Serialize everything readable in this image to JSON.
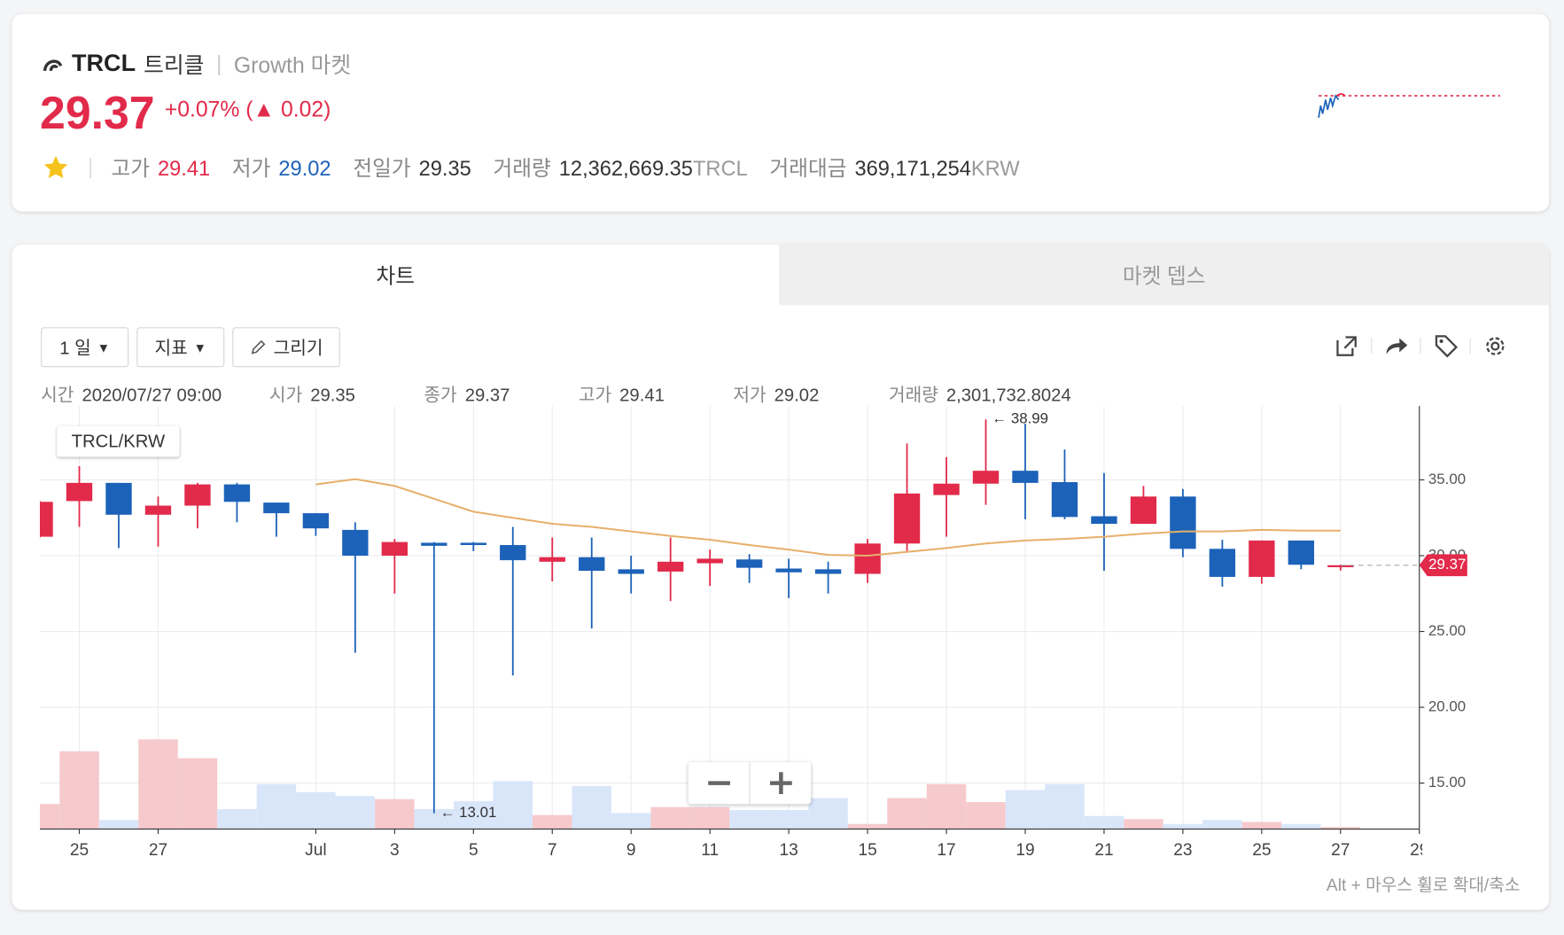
{
  "header": {
    "symbol": "TRCL",
    "name": "트리클",
    "market": "Growth 마켓",
    "price": "29.37",
    "change_pct": "+0.07%",
    "change": "(▲ 0.02)",
    "stats": [
      {
        "label": "고가",
        "value": "29.41",
        "tone": "red"
      },
      {
        "label": "저가",
        "value": "29.02",
        "tone": "blue"
      },
      {
        "label": "전일가",
        "value": "29.35",
        "tone": "dark"
      },
      {
        "label": "거래량",
        "value": "12,362,669.35",
        "unit": "TRCL",
        "tone": "dark"
      },
      {
        "label": "거래대금",
        "value": "369,171,254",
        "unit": "KRW",
        "tone": "dark"
      }
    ]
  },
  "tabs": [
    "차트",
    "마켓 뎁스"
  ],
  "toolbar": {
    "interval": "1 일",
    "indicator": "지표",
    "draw": "그리기"
  },
  "info_bar": [
    {
      "label": "시간",
      "value": "2020/07/27 09:00"
    },
    {
      "label": "시가",
      "value": "29.35"
    },
    {
      "label": "종가",
      "value": "29.37"
    },
    {
      "label": "고가",
      "value": "29.41"
    },
    {
      "label": "저가",
      "value": "29.02"
    },
    {
      "label": "거래량",
      "value": "2,301,732.8024"
    }
  ],
  "hint": "Alt + 마우스 휠로 확대/축소",
  "chart_data": {
    "type": "candlestick",
    "pair": "TRCL/KRW",
    "x": [
      "2020-06-24",
      "2020-06-25",
      "2020-06-26",
      "2020-06-27",
      "2020-06-28",
      "2020-06-29",
      "2020-06-30",
      "2020-07-01",
      "2020-07-02",
      "2020-07-03",
      "2020-07-04",
      "2020-07-05",
      "2020-07-06",
      "2020-07-07",
      "2020-07-08",
      "2020-07-09",
      "2020-07-10",
      "2020-07-11",
      "2020-07-12",
      "2020-07-13",
      "2020-07-14",
      "2020-07-15",
      "2020-07-16",
      "2020-07-17",
      "2020-07-18",
      "2020-07-19",
      "2020-07-20",
      "2020-07-21",
      "2020-07-22",
      "2020-07-23",
      "2020-07-24",
      "2020-07-25",
      "2020-07-26",
      "2020-07-27"
    ],
    "open": [
      31.25,
      33.6,
      34.8,
      32.7,
      33.3,
      34.7,
      33.5,
      32.8,
      31.7,
      30.0,
      30.85,
      30.85,
      30.7,
      29.6,
      29.9,
      29.1,
      28.95,
      29.5,
      29.75,
      29.15,
      29.1,
      28.8,
      30.8,
      34.0,
      34.75,
      35.6,
      34.85,
      32.6,
      32.1,
      33.9,
      30.45,
      28.6,
      31.0,
      29.35
    ],
    "high": [
      33.6,
      35.9,
      34.8,
      33.9,
      34.8,
      34.8,
      33.5,
      32.8,
      32.2,
      31.1,
      30.9,
      30.9,
      31.9,
      31.2,
      31.2,
      30.0,
      31.2,
      30.4,
      30.1,
      29.8,
      29.6,
      31.1,
      37.4,
      36.5,
      38.99,
      38.7,
      37.0,
      35.45,
      34.6,
      34.4,
      31.05,
      31.0,
      31.0,
      29.41
    ],
    "low": [
      31.2,
      31.9,
      30.5,
      30.6,
      31.8,
      32.2,
      31.25,
      31.3,
      23.6,
      27.5,
      13.01,
      30.3,
      22.1,
      28.3,
      25.2,
      27.5,
      27.0,
      28.0,
      28.2,
      27.2,
      27.5,
      28.2,
      30.3,
      31.25,
      33.35,
      32.4,
      32.4,
      29.0,
      32.1,
      29.9,
      27.95,
      28.15,
      29.1,
      29.02
    ],
    "close": [
      33.55,
      34.8,
      32.7,
      33.3,
      34.7,
      33.55,
      32.8,
      31.8,
      30.0,
      30.9,
      30.65,
      30.7,
      29.7,
      29.9,
      29.0,
      28.8,
      29.6,
      29.8,
      29.2,
      28.9,
      28.8,
      30.8,
      34.1,
      34.75,
      35.6,
      34.8,
      32.55,
      32.1,
      33.9,
      30.45,
      28.6,
      31.0,
      29.4,
      29.37
    ],
    "volume": [
      28800000,
      89700000,
      10400000,
      103500000,
      81700000,
      23000000,
      51800000,
      42600000,
      38000000,
      34500000,
      23000000,
      32200000,
      55200000,
      16100000,
      49500000,
      18400000,
      25300000,
      25300000,
      21900000,
      21900000,
      35700000,
      5800000,
      35700000,
      51800000,
      31100000,
      44900000,
      51800000,
      15000000,
      11500000,
      5800000,
      10400000,
      8100000,
      5800000,
      2301732.8024
    ],
    "ma": [
      null,
      null,
      null,
      null,
      null,
      null,
      null,
      34.7,
      35.05,
      34.6,
      33.75,
      32.9,
      32.5,
      32.1,
      31.9,
      31.6,
      31.3,
      31.05,
      30.7,
      30.4,
      30.05,
      30.0,
      30.25,
      30.5,
      30.8,
      31.0,
      31.1,
      31.25,
      31.45,
      31.6,
      31.6,
      31.7,
      31.65,
      31.65
    ],
    "xlim": [
      "2020-06-24",
      "2020-07-29"
    ],
    "xticks": [
      {
        "value": "2020-06-25",
        "label": "25"
      },
      {
        "value": "2020-06-27",
        "label": "27"
      },
      {
        "value": "2020-07-01",
        "label": "Jul"
      },
      {
        "value": "2020-07-03",
        "label": "3"
      },
      {
        "value": "2020-07-05",
        "label": "5"
      },
      {
        "value": "2020-07-07",
        "label": "7"
      },
      {
        "value": "2020-07-09",
        "label": "9"
      },
      {
        "value": "2020-07-11",
        "label": "11"
      },
      {
        "value": "2020-07-13",
        "label": "13"
      },
      {
        "value": "2020-07-15",
        "label": "15"
      },
      {
        "value": "2020-07-17",
        "label": "17"
      },
      {
        "value": "2020-07-19",
        "label": "19"
      },
      {
        "value": "2020-07-21",
        "label": "21"
      },
      {
        "value": "2020-07-23",
        "label": "23"
      },
      {
        "value": "2020-07-25",
        "label": "25"
      },
      {
        "value": "2020-07-27",
        "label": "27"
      },
      {
        "value": "2020-07-29",
        "label": "29"
      }
    ],
    "ylim": [
      11.97,
      39.87
    ],
    "yticks": [
      {
        "value": 15,
        "label": "15.00"
      },
      {
        "value": 20,
        "label": "20.00"
      },
      {
        "value": 25,
        "label": "25.00"
      },
      {
        "value": 30,
        "label": "30.00"
      },
      {
        "value": 35,
        "label": "35.00"
      }
    ],
    "volume_lim": [
      0,
      488000000
    ],
    "annotations": [
      {
        "label": "← 38.99",
        "x": "2020-07-18",
        "value": 38.99
      },
      {
        "label": "← 13.01",
        "x": "2020-07-04",
        "value": 13.01
      }
    ],
    "grid": true,
    "up_color": "#e22a4a",
    "down_color": "#1c62b9",
    "volume_up_color": "#f6c9cc",
    "volume_down_color": "#d9e6fa",
    "ma_color": "#e6b06a"
  }
}
